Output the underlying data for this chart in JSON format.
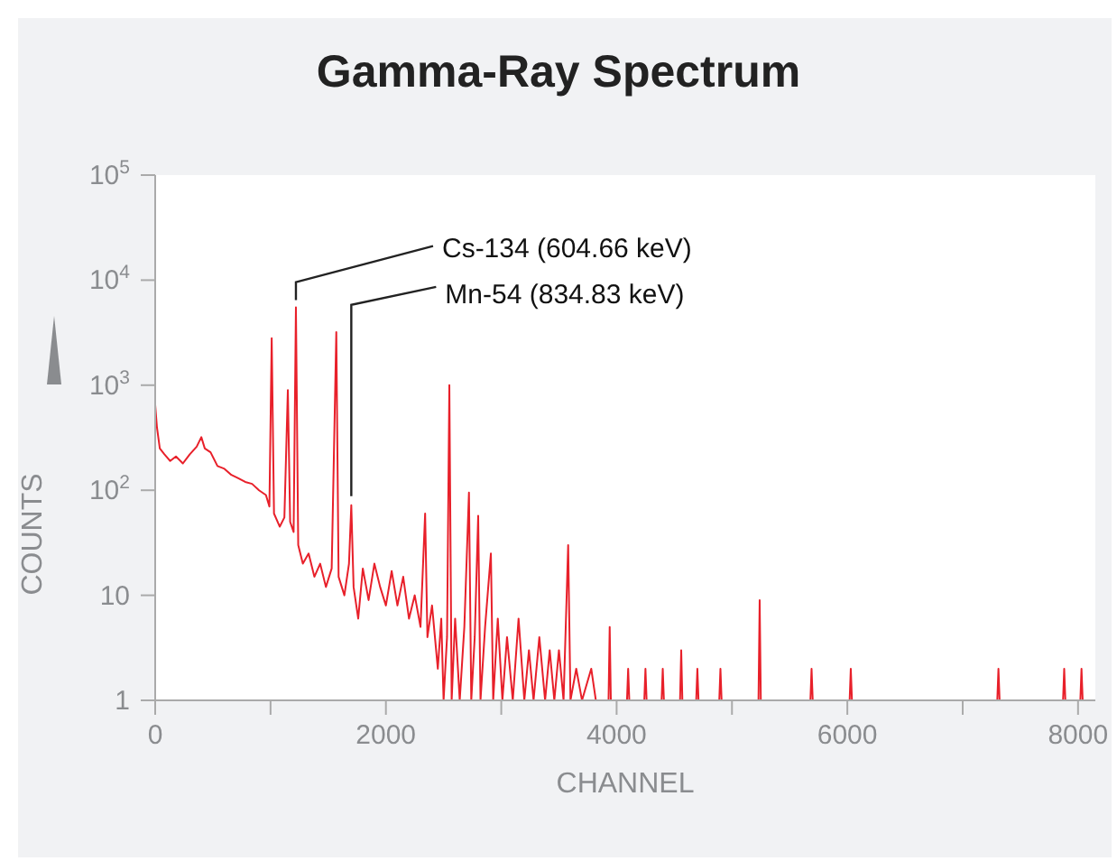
{
  "chart_data": {
    "type": "line",
    "title": "Gamma-Ray Spectrum",
    "xlabel": "CHANNEL",
    "ylabel": "COUNTS",
    "log": "y",
    "grid": false,
    "marker": "none",
    "line_style": "solid",
    "xlim": [
      0,
      8150
    ],
    "xticks": [
      0,
      {
        "value": 1000,
        "label": null
      },
      2000,
      {
        "value": 3000,
        "label": null
      },
      4000,
      {
        "value": 5000,
        "label": null
      },
      6000,
      {
        "value": 7000,
        "label": null
      },
      8000
    ],
    "ylim": [
      1,
      100000
    ],
    "yticks": [
      1,
      10,
      {
        "value": 100,
        "label": "10$^{2}$"
      },
      {
        "value": 1000,
        "label": "10$^{3}$"
      },
      {
        "value": 10000,
        "label": "10$^{4}$"
      },
      {
        "value": 100000,
        "label": "10$^{5}$"
      }
    ],
    "annotations": [
      {
        "text": "Cs-134 (604.66 keV)",
        "x": 1220,
        "y": 5500
      },
      {
        "text": "Mn-54 (834.83 keV)",
        "x": 1700,
        "y": 72
      }
    ],
    "series": [
      {
        "color": "#e8202a",
        "x": [
          0,
          15,
          40,
          80,
          130,
          180,
          240,
          300,
          360,
          400,
          430,
          480,
          540,
          600,
          660,
          720,
          780,
          840,
          900,
          960,
          990,
          1010,
          1030,
          1080,
          1120,
          1150,
          1170,
          1200,
          1220,
          1240,
          1280,
          1330,
          1380,
          1430,
          1480,
          1530,
          1570,
          1590,
          1640,
          1680,
          1700,
          1720,
          1760,
          1800,
          1850,
          1900,
          1950,
          2000,
          2050,
          2100,
          2150,
          2200,
          2250,
          2300,
          2340,
          2360,
          2400,
          2450,
          2480,
          2500,
          2530,
          2550,
          2570,
          2600,
          2640,
          2680,
          2720,
          2740,
          2770,
          2800,
          2820,
          2860,
          2910,
          2930,
          2970,
          3010,
          3050,
          3100,
          3150,
          3200,
          3240,
          3280,
          3330,
          3380,
          3420,
          3460,
          3500,
          3540,
          3580,
          3600,
          3650,
          3700,
          3780,
          3820,
          3930,
          3940,
          3950,
          4090,
          4100,
          4110,
          4240,
          4250,
          4260,
          4390,
          4400,
          4410,
          4550,
          4560,
          4570,
          4690,
          4700,
          4710,
          4890,
          4900,
          4910,
          5230,
          5240,
          5250,
          5680,
          5690,
          5700,
          6020,
          6030,
          6040,
          7300,
          7310,
          7320,
          7870,
          7880,
          7890,
          8020,
          8030,
          8040
        ],
        "values": [
          650,
          400,
          250,
          220,
          190,
          210,
          180,
          220,
          260,
          320,
          250,
          230,
          170,
          160,
          140,
          130,
          120,
          115,
          100,
          90,
          70,
          2800,
          60,
          45,
          55,
          900,
          50,
          40,
          5500,
          30,
          20,
          25,
          15,
          20,
          12,
          18,
          3200,
          15,
          10,
          20,
          72,
          12,
          6,
          18,
          9,
          20,
          12,
          8,
          17,
          8,
          15,
          6,
          10,
          5,
          60,
          4,
          8,
          2,
          6,
          1,
          4,
          1000,
          1,
          6,
          1,
          5,
          95,
          1,
          4,
          57,
          1,
          5,
          25,
          1,
          6,
          1,
          4,
          1,
          6,
          1,
          3,
          1,
          4,
          1,
          3,
          1,
          3,
          1,
          30,
          1,
          2,
          1,
          2,
          1,
          1,
          5,
          1,
          1,
          2,
          1,
          1,
          2,
          1,
          1,
          2,
          1,
          1,
          3,
          1,
          1,
          2,
          1,
          1,
          2,
          1,
          1,
          9,
          1,
          1,
          2,
          1,
          1,
          2,
          1,
          1,
          2,
          1,
          1,
          2,
          1,
          1,
          2,
          1
        ]
      }
    ]
  }
}
